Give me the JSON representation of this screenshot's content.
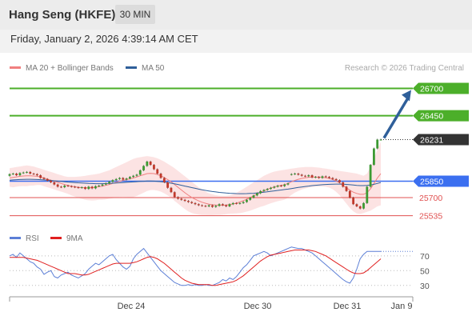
{
  "header": {
    "title": "Hang Seng (HKFE)",
    "timeframe": "30 MIN"
  },
  "date": "Friday, January 2, 2026 4:39:14 AM CET",
  "credit": "Research © 2026 Trading Central",
  "colors": {
    "ma20": "#f08080",
    "ma50": "#2f5f9a",
    "green": "#4caf2a",
    "blue": "#3b6ff0",
    "red": "#e05050",
    "rsi": "#5c7fd6",
    "rsi_ma": "#e02020",
    "dark": "#333333"
  },
  "chart_data": [
    {
      "type": "candlestick",
      "legend": [
        {
          "name": "MA 20 + Bollinger Bands"
        },
        {
          "name": "MA 50"
        }
      ],
      "ylim": [
        25400,
        26850
      ],
      "x_ticks": [
        "Dec 24",
        "Dec 30",
        "Dec 31",
        "Jan 9"
      ],
      "levels": [
        {
          "value": 26700,
          "label": "26700",
          "kind": "green"
        },
        {
          "value": 26450,
          "label": "26450",
          "kind": "green"
        },
        {
          "value": 26231,
          "label": "26231",
          "kind": "last"
        },
        {
          "value": 25850,
          "label": "25850",
          "kind": "blue"
        },
        {
          "value": 25700,
          "label": "25700",
          "kind": "red"
        },
        {
          "value": 25535,
          "label": "25535",
          "kind": "red"
        }
      ],
      "projection": {
        "from": 26231,
        "to": 26700
      },
      "series": {
        "open": [
          25900,
          25915,
          25920,
          25905,
          25925,
          25930,
          25935,
          25920,
          25915,
          25905,
          25880,
          25870,
          25855,
          25840,
          25820,
          25800,
          25795,
          25810,
          25805,
          25800,
          25795,
          25790,
          25795,
          25780,
          25800,
          25785,
          25805,
          25810,
          25820,
          25830,
          25845,
          25860,
          25870,
          25880,
          25865,
          25875,
          25890,
          25900,
          25910,
          25950,
          25990,
          26030,
          26000,
          25960,
          25920,
          25880,
          25840,
          25790,
          25750,
          25705,
          25690,
          25680,
          25670,
          25660,
          25650,
          25640,
          25630,
          25625,
          25620,
          25630,
          25615,
          25625,
          25640,
          25630,
          25620,
          25640,
          25650,
          25645,
          25650,
          25660,
          25680,
          25700,
          25720,
          25740,
          25760,
          25770,
          25780,
          25790,
          25800,
          25810,
          25805,
          25820,
          25910,
          25915,
          25920,
          25910,
          25900,
          25895,
          25905,
          25885,
          25890,
          25880,
          25895,
          25890,
          25880,
          25870,
          25860,
          25840,
          25800,
          25760,
          25700,
          25640,
          25620,
          25600,
          25650,
          25800,
          26000,
          26150,
          26231
        ],
        "close": [
          25915,
          25920,
          25905,
          25925,
          25930,
          25935,
          25920,
          25915,
          25905,
          25880,
          25870,
          25855,
          25840,
          25820,
          25800,
          25795,
          25810,
          25805,
          25800,
          25795,
          25790,
          25795,
          25780,
          25800,
          25785,
          25805,
          25810,
          25820,
          25830,
          25845,
          25860,
          25870,
          25880,
          25865,
          25875,
          25890,
          25900,
          25910,
          25950,
          25990,
          26030,
          26000,
          25960,
          25920,
          25880,
          25840,
          25790,
          25750,
          25705,
          25690,
          25680,
          25670,
          25660,
          25650,
          25640,
          25630,
          25625,
          25620,
          25630,
          25615,
          25625,
          25640,
          25630,
          25620,
          25640,
          25650,
          25645,
          25650,
          25660,
          25680,
          25700,
          25720,
          25740,
          25760,
          25770,
          25780,
          25790,
          25800,
          25810,
          25805,
          25820,
          25830,
          25915,
          25920,
          25910,
          25900,
          25895,
          25905,
          25885,
          25890,
          25880,
          25895,
          25890,
          25880,
          25870,
          25860,
          25840,
          25800,
          25760,
          25700,
          25640,
          25620,
          25600,
          25650,
          25800,
          26000,
          26150,
          26231,
          26231
        ]
      },
      "ma20": [
        25880,
        25885,
        25890,
        25895,
        25898,
        25900,
        25900,
        25898,
        25895,
        25890,
        25880,
        25870,
        25860,
        25850,
        25840,
        25830,
        25820,
        25812,
        25805,
        25800,
        25795,
        25792,
        25790,
        25790,
        25792,
        25795,
        25800,
        25805,
        25812,
        25820,
        25830,
        25840,
        25850,
        25858,
        25865,
        25872,
        25880,
        25890,
        25900,
        25910,
        25920,
        25922,
        25920,
        25912,
        25900,
        25885,
        25865,
        25845,
        25820,
        25795,
        25770,
        25745,
        25722,
        25702,
        25685,
        25670,
        25658,
        25648,
        25640,
        25635,
        25632,
        25630,
        25630,
        25632,
        25636,
        25642,
        25650,
        25660,
        25672,
        25686,
        25700,
        25716,
        25732,
        25748,
        25762,
        25776,
        25788,
        25798,
        25806,
        25812,
        25818,
        25830,
        25845,
        25858,
        25868,
        25876,
        25882,
        25886,
        25888,
        25889,
        25888,
        25886,
        25882,
        25876,
        25866,
        25852,
        25834,
        25812,
        25790,
        25768,
        25750,
        25738,
        25730,
        25730,
        25745,
        25780,
        25830,
        25880,
        25920
      ],
      "ma50": [
        25860,
        25862,
        25864,
        25866,
        25867,
        25868,
        25868,
        25867,
        25866,
        25864,
        25862,
        25860,
        25857,
        25854,
        25851,
        25848,
        25845,
        25842,
        25840,
        25838,
        25836,
        25834,
        25832,
        25830,
        25829,
        25828,
        25828,
        25828,
        25829,
        25830,
        25832,
        25834,
        25836,
        25838,
        25840,
        25842,
        25844,
        25846,
        25848,
        25850,
        25852,
        25852,
        25851,
        25849,
        25846,
        25842,
        25837,
        25832,
        25826,
        25820,
        25813,
        25806,
        25799,
        25792,
        25785,
        25778,
        25772,
        25766,
        25761,
        25756,
        25752,
        25748,
        25745,
        25742,
        25740,
        25738,
        25737,
        25736,
        25736,
        25737,
        25738,
        25740,
        25743,
        25746,
        25750,
        25754,
        25758,
        25762,
        25766,
        25770,
        25774,
        25778,
        25783,
        25788,
        25793,
        25798,
        25802,
        25806,
        25810,
        25813,
        25816,
        25818,
        25820,
        25822,
        25823,
        25824,
        25824,
        25823,
        25821,
        25818,
        25815,
        25812,
        25810,
        25810,
        25812,
        25816,
        25822,
        25830,
        25838
      ],
      "bb_upper": [
        25970,
        25975,
        25980,
        25985,
        25990,
        25995,
        25990,
        25985,
        25975,
        25965,
        25955,
        25945,
        25935,
        25925,
        25915,
        25905,
        25895,
        25890,
        25890,
        25890,
        25892,
        25895,
        25900,
        25905,
        25910,
        25915,
        25920,
        25930,
        25940,
        25950,
        25965,
        25980,
        25995,
        26010,
        26025,
        26040,
        26055,
        26065,
        26070,
        26075,
        26080,
        26075,
        26070,
        26060,
        26045,
        26030,
        26010,
        25990,
        25970,
        25945,
        25920,
        25895,
        25870,
        25845,
        25820,
        25795,
        25775,
        25755,
        25740,
        25730,
        25722,
        25718,
        25716,
        25716,
        25720,
        25730,
        25745,
        25762,
        25780,
        25800,
        25820,
        25840,
        25860,
        25880,
        25900,
        25915,
        25928,
        25938,
        25945,
        25950,
        25955,
        25960,
        25965,
        25970,
        25975,
        25978,
        25980,
        25980,
        25980,
        25978,
        25975,
        25970,
        25965,
        25960,
        25955,
        25950,
        25945,
        25940,
        25935,
        25930,
        25925,
        25920,
        25910,
        25900,
        25920,
        25980,
        26060,
        26140,
        26210
      ],
      "bb_lower": [
        25800,
        25795,
        25800,
        25805,
        25806,
        25805,
        25810,
        25811,
        25815,
        25815,
        25805,
        25795,
        25785,
        25775,
        25765,
        25755,
        25745,
        25734,
        25720,
        25710,
        25698,
        25689,
        25680,
        25675,
        25674,
        25675,
        25680,
        25680,
        25684,
        25690,
        25695,
        25700,
        25705,
        25706,
        25705,
        25704,
        25705,
        25715,
        25730,
        25745,
        25760,
        25769,
        25770,
        25764,
        25755,
        25740,
        25720,
        25700,
        25670,
        25645,
        25620,
        25595,
        25574,
        25559,
        25550,
        25545,
        25541,
        25541,
        25540,
        25540,
        25542,
        25542,
        25544,
        25548,
        25552,
        25554,
        25555,
        25558,
        25564,
        25572,
        25580,
        25592,
        25604,
        25616,
        25624,
        25637,
        25648,
        25658,
        25667,
        25674,
        25681,
        25700,
        25725,
        25746,
        25761,
        25774,
        25784,
        25792,
        25796,
        25800,
        25801,
        25802,
        25799,
        25792,
        25777,
        25754,
        25723,
        25684,
        25645,
        25606,
        25575,
        25556,
        25550,
        25560,
        25570,
        25580,
        25600,
        25620,
        25630
      ]
    },
    {
      "type": "line",
      "legend": [
        {
          "name": "RSI"
        },
        {
          "name": "9MA"
        }
      ],
      "ylim": [
        20,
        85
      ],
      "y_ticks": [
        70,
        50,
        30
      ],
      "series": [
        {
          "name": "RSI",
          "values": [
            70,
            72,
            68,
            74,
            70,
            66,
            62,
            60,
            55,
            52,
            45,
            48,
            50,
            42,
            40,
            44,
            46,
            48,
            44,
            42,
            40,
            43,
            46,
            52,
            56,
            60,
            58,
            62,
            66,
            70,
            72,
            65,
            60,
            55,
            52,
            56,
            66,
            72,
            76,
            80,
            74,
            68,
            62,
            56,
            50,
            46,
            42,
            38,
            34,
            32,
            30,
            30,
            31,
            30,
            31,
            30,
            30,
            31,
            30,
            30,
            32,
            34,
            38,
            36,
            40,
            38,
            42,
            48,
            54,
            58,
            64,
            70,
            72,
            74,
            76,
            74,
            70,
            72,
            74,
            76,
            78,
            80,
            82,
            81,
            80,
            80,
            78,
            76,
            74,
            70,
            66,
            62,
            58,
            54,
            50,
            46,
            42,
            38,
            35,
            33,
            40,
            52,
            66,
            72,
            76,
            76,
            76,
            76,
            76
          ]
        },
        {
          "name": "9MA",
          "values": [
            68,
            68,
            68,
            68,
            68,
            67,
            66,
            65,
            64,
            62,
            60,
            58,
            56,
            54,
            52,
            50,
            48,
            46,
            46,
            46,
            45,
            44,
            44,
            45,
            47,
            49,
            51,
            53,
            55,
            57,
            59,
            60,
            60,
            60,
            60,
            60,
            61,
            62,
            64,
            66,
            68,
            69,
            68,
            66,
            63,
            60,
            56,
            52,
            48,
            44,
            40,
            37,
            35,
            33,
            32,
            31,
            31,
            31,
            31,
            30,
            30,
            31,
            32,
            33,
            34,
            35,
            37,
            40,
            43,
            47,
            51,
            55,
            59,
            63,
            66,
            69,
            71,
            72,
            73,
            74,
            75,
            76,
            77,
            78,
            78,
            78,
            78,
            78,
            77,
            76,
            74,
            72,
            70,
            67,
            64,
            61,
            58,
            55,
            52,
            49,
            47,
            46,
            46,
            47,
            50,
            54,
            58,
            62,
            66
          ]
        }
      ]
    }
  ]
}
